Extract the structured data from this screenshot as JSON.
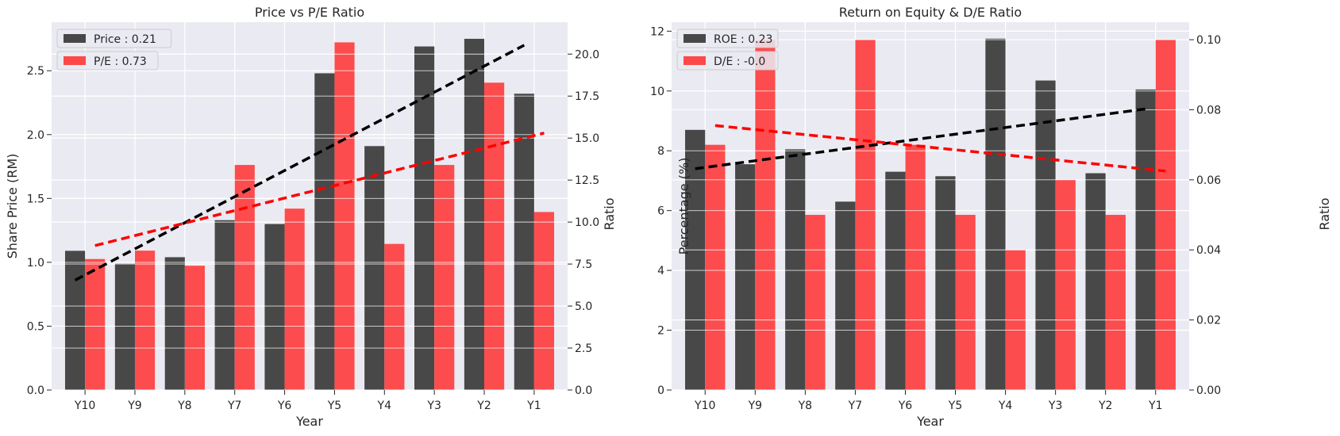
{
  "chart_data": [
    {
      "type": "bar",
      "title": "Price vs P/E Ratio",
      "xlabel": "Year",
      "ylabel": "Share Price (RM)",
      "y2label": "Ratio",
      "categories": [
        "Y10",
        "Y9",
        "Y8",
        "Y7",
        "Y6",
        "Y5",
        "Y4",
        "Y3",
        "Y2",
        "Y1"
      ],
      "ylim": [
        0,
        2.88
      ],
      "y2lim": [
        0,
        21.9
      ],
      "yticks": [
        "0.0",
        "0.5",
        "1.0",
        "1.5",
        "2.0",
        "2.5"
      ],
      "y2ticks": [
        "0.0",
        "2.5",
        "5.0",
        "7.5",
        "10.0",
        "12.5",
        "15.0",
        "17.5",
        "20.0"
      ],
      "grid": true,
      "legend_position": "top-left",
      "series": [
        {
          "name": "Price : 0.21",
          "axis": "left",
          "color": "#3a3a3a",
          "values": [
            1.09,
            0.99,
            1.04,
            1.33,
            1.3,
            2.48,
            1.91,
            2.69,
            2.75,
            2.32
          ],
          "trend": [
            0.86,
            2.7
          ]
        },
        {
          "name": "P/E : 0.73",
          "axis": "right",
          "color": "#ff3b3b",
          "values": [
            7.8,
            8.3,
            7.4,
            13.4,
            10.8,
            20.7,
            8.7,
            13.4,
            18.3,
            10.6
          ],
          "trend": [
            8.6,
            15.3
          ]
        }
      ]
    },
    {
      "type": "bar",
      "title": "Return on Equity & D/E Ratio",
      "xlabel": "Year",
      "ylabel": "Percentage (%)",
      "y2label": "Ratio",
      "categories": [
        "Y10",
        "Y9",
        "Y8",
        "Y7",
        "Y6",
        "Y5",
        "Y4",
        "Y3",
        "Y2",
        "Y1"
      ],
      "ylim": [
        0,
        12.3
      ],
      "y2lim": [
        0,
        0.105
      ],
      "yticks": [
        "0",
        "2",
        "4",
        "6",
        "8",
        "10",
        "12"
      ],
      "y2ticks": [
        "0.00",
        "0.02",
        "0.04",
        "0.06",
        "0.08",
        "0.10"
      ],
      "grid": true,
      "legend_position": "top-left",
      "series": [
        {
          "name": "ROE : 0.23",
          "axis": "left",
          "color": "#3a3a3a",
          "values": [
            8.7,
            7.55,
            8.05,
            6.3,
            7.3,
            7.15,
            11.75,
            10.35,
            7.25,
            10.05
          ],
          "trend": [
            7.4,
            9.4
          ]
        },
        {
          "name": "D/E : -0.0",
          "axis": "right",
          "color": "#ff3b3b",
          "values": [
            0.07,
            0.1,
            0.05,
            0.1,
            0.07,
            0.05,
            0.04,
            0.06,
            0.05,
            0.1
          ],
          "trend": [
            0.0755,
            0.0625
          ]
        }
      ]
    }
  ]
}
